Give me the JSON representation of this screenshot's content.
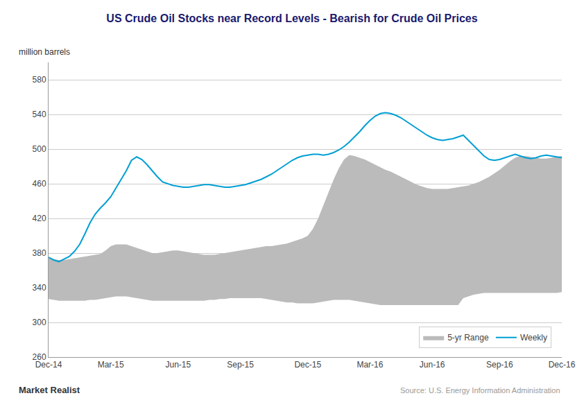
{
  "chart_data": {
    "type": "line",
    "title": "US Crude Oil Stocks near Record Levels - Bearish for Crude Oil Prices",
    "ylabel": "million barrels",
    "annotations": [
      "Market Realist",
      "Source: U.S. Energy Information Administration"
    ],
    "categories": [
      "Dec-14",
      null,
      null,
      null,
      null,
      null,
      null,
      null,
      null,
      null,
      null,
      null,
      "Mar-15",
      null,
      null,
      null,
      null,
      null,
      null,
      null,
      null,
      null,
      null,
      null,
      null,
      "Jun-15",
      null,
      null,
      null,
      null,
      null,
      null,
      null,
      null,
      null,
      null,
      null,
      "Sep-15",
      null,
      null,
      null,
      null,
      null,
      null,
      null,
      null,
      null,
      null,
      null,
      null,
      "Dec-15",
      null,
      null,
      null,
      null,
      null,
      null,
      null,
      null,
      null,
      null,
      null,
      "Mar-16",
      null,
      null,
      null,
      null,
      null,
      null,
      null,
      null,
      null,
      null,
      null,
      "Jun-16",
      null,
      null,
      null,
      null,
      null,
      null,
      null,
      null,
      null,
      null,
      null,
      null,
      "Sep-16",
      null,
      null,
      null,
      null,
      null,
      null,
      null,
      null,
      null,
      null,
      null,
      "Dec-16"
    ],
    "series": [
      {
        "name": "5-yr Range",
        "type": "band",
        "color": "#BBBBBB",
        "values": [
          374,
          373,
          372,
          372,
          373,
          374,
          375,
          376,
          377,
          378,
          379,
          383,
          388,
          390,
          390,
          390,
          388,
          386,
          384,
          382,
          380,
          380,
          381,
          382,
          383,
          383,
          382,
          381,
          380,
          379,
          378,
          378,
          378,
          379,
          380,
          381,
          382,
          383,
          384,
          385,
          386,
          387,
          388,
          388,
          389,
          390,
          391,
          393,
          395,
          397,
          400,
          408,
          420,
          435,
          450,
          465,
          478,
          488,
          493,
          492,
          490,
          488,
          485,
          482,
          479,
          476,
          474,
          471,
          468,
          465,
          462,
          459,
          457,
          455,
          454,
          454,
          454,
          454,
          455,
          456,
          457,
          458,
          460,
          462,
          465,
          468,
          472,
          476,
          481,
          486,
          490,
          492,
          492,
          491,
          490,
          489,
          489,
          490,
          491,
          492
        ],
        "lower": [
          327,
          326,
          325,
          325,
          325,
          325,
          325,
          325,
          326,
          326,
          327,
          328,
          329,
          330,
          330,
          330,
          329,
          328,
          327,
          326,
          325,
          325,
          325,
          325,
          325,
          325,
          325,
          325,
          325,
          325,
          325,
          326,
          326,
          327,
          327,
          328,
          328,
          328,
          328,
          328,
          328,
          328,
          327,
          326,
          325,
          324,
          323,
          323,
          322,
          322,
          322,
          322,
          323,
          324,
          325,
          326,
          326,
          326,
          326,
          325,
          324,
          323,
          322,
          321,
          320,
          320,
          320,
          320,
          320,
          320,
          320,
          320,
          320,
          320,
          320,
          320,
          320,
          320,
          320,
          320,
          328,
          330,
          332,
          333,
          334,
          334,
          334,
          334,
          334,
          334,
          334,
          334,
          334,
          334,
          334,
          334,
          334,
          334,
          334,
          335
        ]
      },
      {
        "name": "Weekly",
        "type": "line",
        "color": "#009FD4",
        "values": [
          375,
          372,
          370,
          373,
          376,
          382,
          390,
          402,
          415,
          425,
          432,
          438,
          445,
          455,
          465,
          475,
          487,
          491,
          488,
          482,
          475,
          468,
          462,
          460,
          458,
          457,
          456,
          456,
          457,
          458,
          459,
          459,
          458,
          457,
          456,
          456,
          457,
          458,
          459,
          461,
          463,
          465,
          468,
          471,
          475,
          479,
          483,
          487,
          490,
          492,
          493,
          494,
          494,
          493,
          494,
          496,
          499,
          503,
          508,
          514,
          520,
          527,
          533,
          538,
          541,
          542,
          541,
          539,
          536,
          532,
          528,
          524,
          520,
          516,
          513,
          511,
          510,
          511,
          512,
          514,
          516,
          510,
          504,
          498,
          492,
          488,
          487,
          488,
          490,
          492,
          494,
          492,
          490,
          489,
          490,
          492,
          493,
          492,
          491,
          490
        ]
      }
    ],
    "ylim": [
      260,
      600
    ],
    "yticks": [
      260,
      300,
      340,
      380,
      420,
      460,
      500,
      540,
      580
    ],
    "grid": true,
    "legend": "lower right"
  }
}
